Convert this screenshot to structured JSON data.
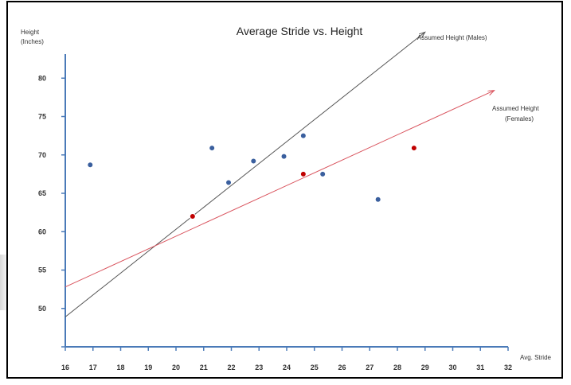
{
  "chart_data": {
    "type": "scatter",
    "title": "Average Stride vs. Height",
    "ylabel_line1": "Height",
    "ylabel_line2": "(Inches)",
    "xlabel": "Avg. Stride",
    "xlim": [
      16,
      32
    ],
    "ylim": [
      45,
      85
    ],
    "x_ticks": [
      16,
      17,
      18,
      19,
      20,
      21,
      22,
      23,
      24,
      25,
      26,
      27,
      28,
      29,
      30,
      31,
      32
    ],
    "y_ticks": [
      50,
      55,
      60,
      65,
      70,
      75,
      80
    ],
    "series": [
      {
        "color": "#3a5f9e",
        "points": [
          [
            16.9,
            68.7
          ],
          [
            21.3,
            70.9
          ],
          [
            21.9,
            66.4
          ],
          [
            22.8,
            69.2
          ],
          [
            23.9,
            69.8
          ],
          [
            24.6,
            72.5
          ],
          [
            25.3,
            67.5
          ],
          [
            27.3,
            64.2
          ]
        ]
      },
      {
        "color": "#c00000",
        "points": [
          [
            20.6,
            62.0
          ],
          [
            24.6,
            67.5
          ],
          [
            28.6,
            70.9
          ]
        ]
      }
    ],
    "lines": [
      {
        "name_line1": "Assumed Height (Males)",
        "name_line2": "",
        "color": "#555555",
        "from": [
          16,
          48.9
        ],
        "to": [
          29.0,
          86.0
        ]
      },
      {
        "name_line1": "Assumed Height",
        "name_line2": "(Females)",
        "color": "#d9535d",
        "from": [
          16,
          52.8
        ],
        "to": [
          31.5,
          78.4
        ]
      }
    ],
    "grid": false,
    "legend": "none"
  }
}
